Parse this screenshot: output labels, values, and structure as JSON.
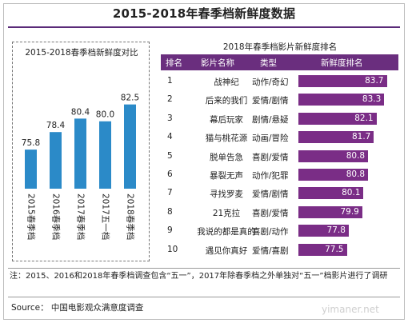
{
  "title": "2015-2018年春季档新鲜度数据",
  "chart_data": [
    {
      "type": "bar",
      "title": "2015-2018春季档新鲜度对比",
      "categories": [
        "2015春季档",
        "2016春季档",
        "2017春季档",
        "2017五一档",
        "2018春季档"
      ],
      "values": [
        75.8,
        78.4,
        80.4,
        80.0,
        82.5
      ],
      "value_labels": [
        "75.8",
        "78.4",
        "80.4",
        "80.0",
        "82.5"
      ],
      "ylim": [
        70,
        84
      ],
      "grid": false,
      "colors": {
        "bar": "#2b8ac8"
      }
    },
    {
      "type": "table",
      "title": "2018年春季档影片新鲜度排名",
      "columns": [
        "排名",
        "影片名称",
        "类型",
        "新鲜度排名"
      ],
      "rows": [
        {
          "rank": "1",
          "film": "战神纪",
          "genre": "动作/奇幻",
          "score": 83.7,
          "score_label": "83.7"
        },
        {
          "rank": "2",
          "film": "后来的我们",
          "genre": "爱情/剧情",
          "score": 83.3,
          "score_label": "83.3"
        },
        {
          "rank": "3",
          "film": "幕后玩家",
          "genre": "剧情/悬疑",
          "score": 82.1,
          "score_label": "82.1"
        },
        {
          "rank": "4",
          "film": "猫与桃花源",
          "genre": "动画/冒险",
          "score": 81.7,
          "score_label": "81.7"
        },
        {
          "rank": "5",
          "film": "脱单告急",
          "genre": "喜剧/爱情",
          "score": 80.8,
          "score_label": "80.8"
        },
        {
          "rank": "6",
          "film": "暴裂无声",
          "genre": "动作/犯罪",
          "score": 80.8,
          "score_label": "80.8"
        },
        {
          "rank": "7",
          "film": "寻找罗麦",
          "genre": "爱情/剧情",
          "score": 80.1,
          "score_label": "80.1"
        },
        {
          "rank": "8",
          "film": "21克拉",
          "genre": "喜剧/爱情",
          "score": 79.9,
          "score_label": "79.9"
        },
        {
          "rank": "9",
          "film": "我说的都是真的",
          "genre": "喜剧/动作",
          "score": 77.8,
          "score_label": "77.8"
        },
        {
          "rank": "10",
          "film": "遇见你真好",
          "genre": "爱情/喜剧",
          "score": 77.5,
          "score_label": "77.5"
        }
      ],
      "score_range": [
        70,
        85
      ],
      "colors": {
        "header": "#6a2e7e",
        "bar": "#7a2d86"
      }
    }
  ],
  "note": "注：2015、2016和2018年春季档调查包含“五一”，2017年除春季档之外单独对“五一”档影片进行了调研",
  "source": "Source：  中国电影观众满意度调查",
  "watermark": "yimaner.net"
}
